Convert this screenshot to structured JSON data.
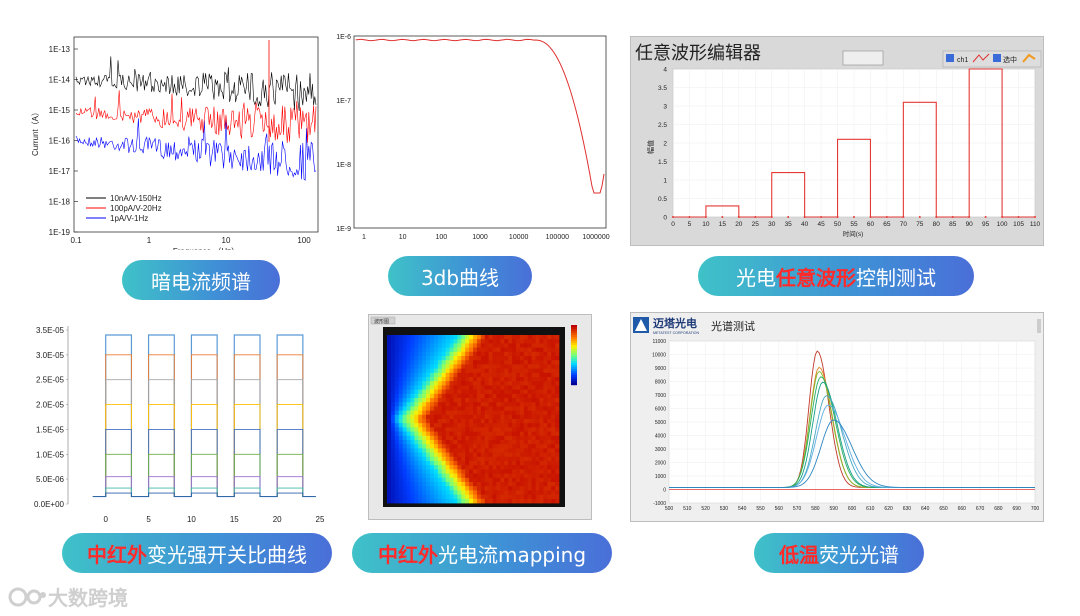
{
  "pills": {
    "p1": "暗电流频谱",
    "p2": "3db曲线",
    "p3_pre": "光电",
    "p3_hl": "任意波形",
    "p3_post": "控制测试",
    "p4_hl": "中红外",
    "p4_post": "变光强开关比曲线",
    "p5_hl": "中红外",
    "p5_post": "光电流mapping",
    "p6_hl": "低温",
    "p6_post": "荧光光谱"
  },
  "logo": {
    "text": "大数跨境"
  },
  "chart1": {
    "ylabel": "Currunt（A）",
    "xlabel": "Frequance （Hz）",
    "yticks": [
      "1E-13",
      "1E-14",
      "1E-15",
      "1E-16",
      "1E-17",
      "1E-18",
      "1E-19"
    ],
    "xticks": [
      "0.1",
      "1",
      "10",
      "100"
    ],
    "legend": [
      "10nA/V-150Hz",
      "100pA/V-20Hz",
      "1pA/V-1Hz"
    ],
    "colors": [
      "#000000",
      "#ff0000",
      "#0000ff"
    ]
  },
  "chart2": {
    "yticks": [
      "1E-6",
      "1E-7",
      "1E-8",
      "1E-9"
    ],
    "xticks": [
      "1",
      "10",
      "100",
      "1000",
      "10000",
      "100000",
      "1000000"
    ],
    "color": "#e03030"
  },
  "chart3": {
    "title": "任意波形编辑器",
    "toolbar": {
      "ch1": "ch1",
      "sel": "选中"
    },
    "ylabel": "幅值",
    "xlabel": "时间(s)",
    "yticks": [
      "4",
      "3.5",
      "3",
      "2.5",
      "2",
      "1.5",
      "1",
      "0.5",
      "0"
    ],
    "xticks": [
      "0",
      "5",
      "10",
      "15",
      "20",
      "25",
      "30",
      "35",
      "40",
      "45",
      "50",
      "55",
      "60",
      "65",
      "70",
      "75",
      "80",
      "85",
      "90",
      "95",
      "100",
      "105",
      "110"
    ],
    "chart_data": {
      "type": "line",
      "pulses": [
        {
          "start": 10,
          "end": 20,
          "value": 0.3
        },
        {
          "start": 30,
          "end": 40,
          "value": 1.2
        },
        {
          "start": 50,
          "end": 60,
          "value": 2.1
        },
        {
          "start": 70,
          "end": 80,
          "value": 3.1
        },
        {
          "start": 90,
          "end": 100,
          "value": 4.0
        }
      ],
      "xlim": [
        0,
        110
      ],
      "ylim": [
        0,
        4
      ]
    }
  },
  "chart4": {
    "yticks": [
      "3.5E-05",
      "3.0E-05",
      "2.5E-05",
      "2.0E-05",
      "1.5E-05",
      "1.0E-05",
      "5.0E-06",
      "0.0E+00"
    ],
    "xticks": [
      "0",
      "5",
      "10",
      "15",
      "20",
      "25"
    ],
    "chart_data": {
      "type": "line",
      "xlim": [
        -3,
        25
      ],
      "ylim": [
        0,
        3.5e-05
      ],
      "on_windows": [
        [
          0,
          3
        ],
        [
          5,
          8
        ],
        [
          10,
          13
        ],
        [
          15,
          18
        ],
        [
          20,
          23
        ]
      ],
      "off_level": 1.5e-06,
      "series_levels": [
        3.4e-05,
        3e-05,
        2.5e-05,
        2e-05,
        1.5e-05,
        1e-05,
        5.5e-06,
        3.2e-06,
        2.2e-06
      ],
      "series_colors": [
        "#5b9bd5",
        "#ed7d31",
        "#a5a5a5",
        "#ffc000",
        "#4472c4",
        "#70ad47",
        "#9e6fd3",
        "#43b8a6",
        "#2e5fa8"
      ]
    }
  },
  "chart5": {
    "label": "波形图"
  },
  "chart6": {
    "brand": "迈塔光电",
    "brand_sub": "METATEST CORPORATION",
    "title": "光谱测试",
    "yticks": [
      "11000",
      "10000",
      "9000",
      "8000",
      "7000",
      "6000",
      "5000",
      "4000",
      "3000",
      "2000",
      "1000",
      "0",
      "-1000"
    ],
    "xticks": [
      "500",
      "510",
      "520",
      "530",
      "540",
      "550",
      "560",
      "570",
      "580",
      "590",
      "600",
      "610",
      "620",
      "630",
      "640",
      "650",
      "660",
      "670",
      "680",
      "690",
      "700"
    ],
    "chart_data": {
      "type": "line",
      "xlim": [
        500,
        700
      ],
      "ylim": [
        -1000,
        11000
      ],
      "series": [
        {
          "peak": 581,
          "height": 10100,
          "width": 9,
          "color": "#c0392b"
        },
        {
          "peak": 582,
          "height": 8900,
          "width": 10,
          "color": "#e67e22"
        },
        {
          "peak": 582,
          "height": 8600,
          "width": 10,
          "color": "#7dbb2e"
        },
        {
          "peak": 583,
          "height": 8200,
          "width": 11,
          "color": "#27ae60"
        },
        {
          "peak": 584,
          "height": 7800,
          "width": 11,
          "color": "#16a085"
        },
        {
          "peak": 586,
          "height": 6800,
          "width": 12,
          "color": "#48a9c5"
        },
        {
          "peak": 587,
          "height": 6100,
          "width": 13,
          "color": "#5dade2"
        },
        {
          "peak": 590,
          "height": 5000,
          "width": 14,
          "color": "#2e86c1"
        }
      ]
    }
  }
}
